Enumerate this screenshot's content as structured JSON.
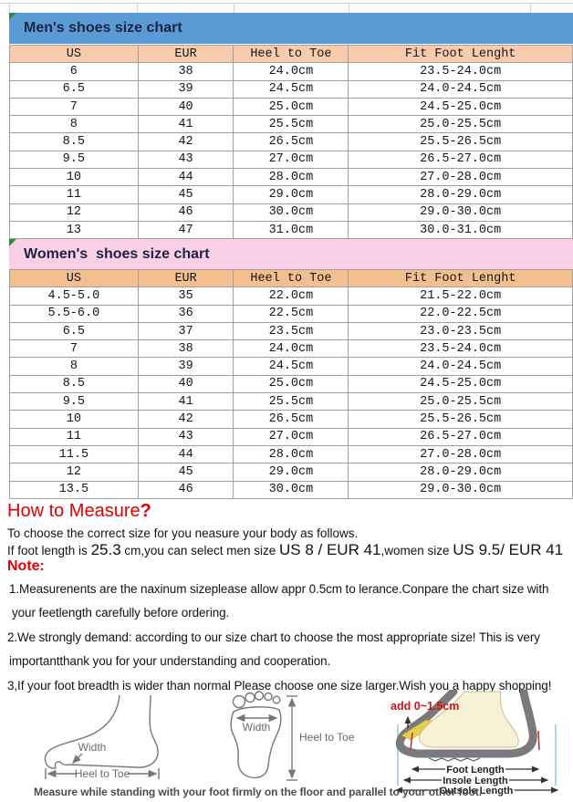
{
  "colors": {
    "men_band_bg": "#5b9bd5",
    "women_band_bg": "#fad0e6",
    "men_header_bg": "#f8cbad",
    "women_header_bg": "#f3bf8e",
    "accent_red": "#e30000",
    "grid_line": "#9f9f9f",
    "corner_triangle_green": "#2e8b44"
  },
  "men_chart": {
    "title": "Men's shoes size chart",
    "columns": [
      "US",
      "EUR",
      "Heel to Toe",
      "Fit Foot Lenght"
    ],
    "rows": [
      [
        "6",
        "38",
        "24.0cm",
        "23.5-24.0cm"
      ],
      [
        "6.5",
        "39",
        "24.5cm",
        "24.0-24.5cm"
      ],
      [
        "7",
        "40",
        "25.0cm",
        "24.5-25.0cm"
      ],
      [
        "8",
        "41",
        "25.5cm",
        "25.0-25.5cm"
      ],
      [
        "8.5",
        "42",
        "26.5cm",
        "25.5-26.5cm"
      ],
      [
        "9.5",
        "43",
        "27.0cm",
        "26.5-27.0cm"
      ],
      [
        "10",
        "44",
        "28.0cm",
        "27.0-28.0cm"
      ],
      [
        "11",
        "45",
        "29.0cm",
        "28.0-29.0cm"
      ],
      [
        "12",
        "46",
        "30.0cm",
        "29.0-30.0cm"
      ],
      [
        "13",
        "47",
        "31.0cm",
        "30.0-31.0cm"
      ]
    ]
  },
  "women_chart": {
    "title": "Women's  shoes size chart",
    "columns": [
      "US",
      "EUR",
      "Heel to Toe",
      "Fit Foot Lenght"
    ],
    "rows": [
      [
        "4.5-5.0",
        "35",
        "22.0cm",
        "21.5-22.0cm"
      ],
      [
        "5.5-6.0",
        "36",
        "22.5cm",
        "22.0-22.5cm"
      ],
      [
        "6.5",
        "37",
        "23.5cm",
        "23.0-23.5cm"
      ],
      [
        "7",
        "38",
        "24.0cm",
        "23.5-24.0cm"
      ],
      [
        "8",
        "39",
        "24.5cm",
        "24.0-24.5cm"
      ],
      [
        "8.5",
        "40",
        "25.0cm",
        "24.5-25.0cm"
      ],
      [
        "9.5",
        "41",
        "25.5cm",
        "25.0-25.5cm"
      ],
      [
        "10",
        "42",
        "26.5cm",
        "25.5-26.5cm"
      ],
      [
        "11",
        "43",
        "27.0cm",
        "26.5-27.0cm"
      ],
      [
        "11.5",
        "44",
        "28.0cm",
        "27.0-28.0cm"
      ],
      [
        "12",
        "45",
        "29.0cm",
        "28.0-29.0cm"
      ],
      [
        "13.5",
        "46",
        "30.0cm",
        "29.0-30.0cm"
      ]
    ]
  },
  "measure": {
    "heading": "How to Measure",
    "heading_q": "?",
    "intro": "To choose the correct size for you neasure your body as follows.",
    "example": {
      "part1": "If foot length is ",
      "length": "25.3",
      "part2": " cm,you can select men size ",
      "men_size": "US 8 / EUR 41",
      "part3": ",women size ",
      "women_size": "US 9.5/ EUR 41"
    },
    "note_label": "Note:",
    "notes_lines": [
      "1.Measurenents are the naxinum sizeplease allow appr 0.5cm to lerance.Conpare the chart size with",
      "your feetlength carefully before ordering.",
      "2.We strongly demand: according to our size chart to choose the most appropriate size! This is very",
      "importantthank you for your understanding and cooperation.",
      "3,If your foot breadth is wider than normal Please choose one size larger.Wish you a happy shopping!"
    ]
  },
  "diagram": {
    "side_width_label": "Width",
    "side_arrow_label": "Heel to Toe",
    "top_width_label": "Width",
    "top_arrow_label": "Heel to Toe",
    "shoe_add_label": "add 0~1.5cm",
    "shoe_labels": [
      "Foot Length",
      "Insole Length",
      "Outsole Length"
    ],
    "caption": "Measure while standing with your foot firmly on the floor and parallel to your other foot."
  }
}
